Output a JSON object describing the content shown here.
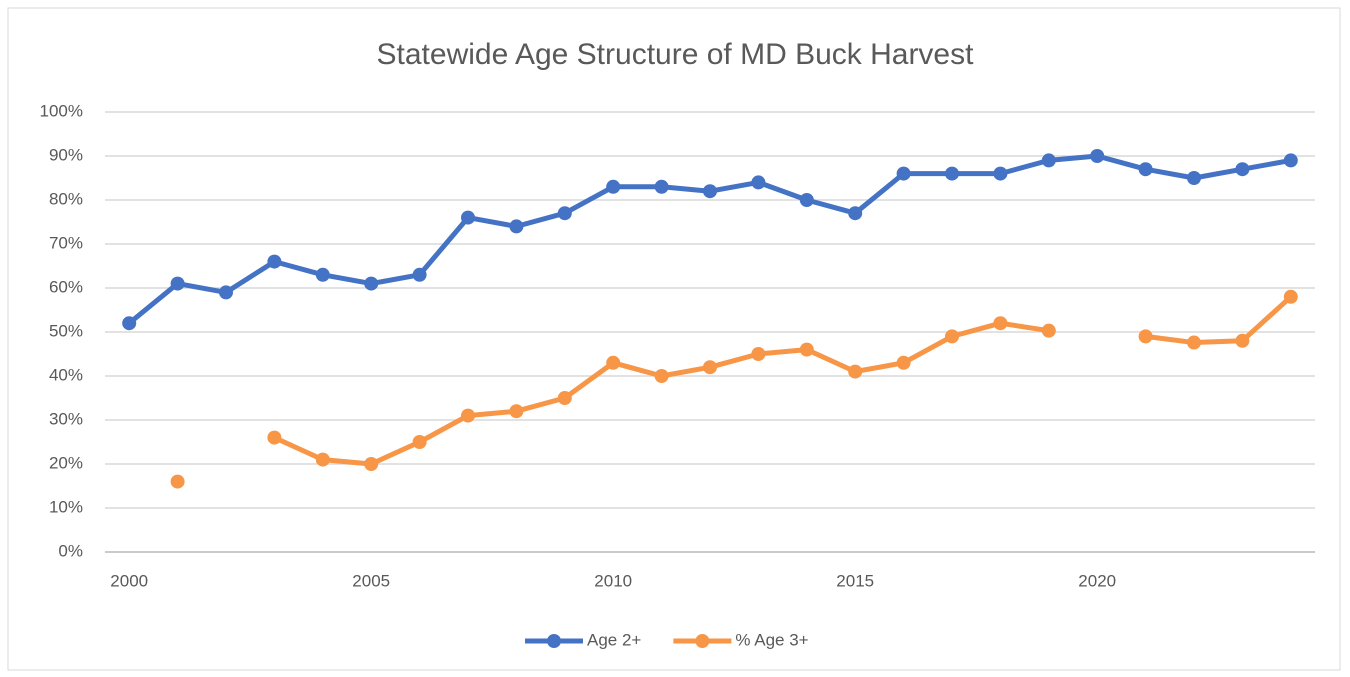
{
  "chart_data": {
    "type": "line",
    "title": "Statewide Age Structure of MD Buck Harvest",
    "x": [
      2000,
      2001,
      2002,
      2003,
      2004,
      2005,
      2006,
      2007,
      2008,
      2009,
      2010,
      2011,
      2012,
      2013,
      2014,
      2015,
      2016,
      2017,
      2018,
      2019,
      2020,
      2021,
      2022,
      2023,
      2024
    ],
    "series": [
      {
        "name": "Age 2+",
        "color": "#4472c4",
        "values": [
          52,
          61,
          59,
          66,
          63,
          61,
          63,
          76,
          74,
          77,
          83,
          83,
          82,
          84,
          80,
          77,
          86,
          86,
          86,
          89,
          90,
          87,
          85,
          87,
          89
        ]
      },
      {
        "name": "% Age 3+",
        "color": "#f79646",
        "values": [
          null,
          16,
          null,
          26,
          21,
          20,
          25,
          31,
          32,
          35,
          43,
          40,
          42,
          45,
          46,
          41,
          43,
          49,
          52,
          50.3,
          null,
          49,
          47.6,
          48,
          58
        ]
      }
    ],
    "xlim": [
      1999.5,
      2024.5
    ],
    "xticks": [
      2000,
      2005,
      2010,
      2015,
      2020
    ],
    "ylim": [
      0,
      100
    ],
    "yticks": [
      {
        "value": 0,
        "label": "0%"
      },
      {
        "value": 10,
        "label": "10%"
      },
      {
        "value": 20,
        "label": "20%"
      },
      {
        "value": 30,
        "label": "30%"
      },
      {
        "value": 40,
        "label": "40%"
      },
      {
        "value": 50,
        "label": "50%"
      },
      {
        "value": 60,
        "label": "60%"
      },
      {
        "value": 70,
        "label": "70%"
      },
      {
        "value": 80,
        "label": "80%"
      },
      {
        "value": 90,
        "label": "90%"
      },
      {
        "value": 100,
        "label": "100%"
      }
    ],
    "grid": true,
    "legend": "bottom"
  }
}
